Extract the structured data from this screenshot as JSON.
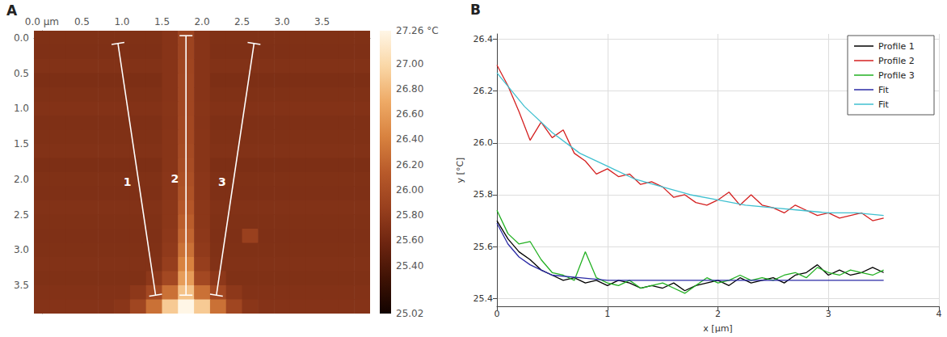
{
  "chart_data": [
    {
      "type": "heatmap",
      "panel_label": "A",
      "x": [
        0,
        0.2,
        0.4,
        0.6,
        0.8,
        1,
        1.2,
        1.4,
        1.6,
        1.8,
        2,
        2.2,
        2.4,
        2.6,
        2.8,
        3,
        3.2,
        3.4,
        3.6,
        3.8,
        4
      ],
      "y": [
        0,
        0.2,
        0.4,
        0.6,
        0.8,
        1,
        1.2,
        1.4,
        1.6,
        1.8,
        2,
        2.2,
        2.4,
        2.6,
        2.8,
        3,
        3.2,
        3.4,
        3.6,
        3.8
      ],
      "cells": [
        [
          25.7,
          25.7,
          25.7,
          25.7,
          25.7,
          25.7,
          25.7,
          25.7,
          25.74,
          25.9,
          25.74,
          25.7,
          25.7,
          25.7,
          25.7,
          25.7,
          25.7,
          25.7,
          25.7,
          25.7,
          25.7
        ],
        [
          25.69,
          25.69,
          25.69,
          25.69,
          25.69,
          25.69,
          25.69,
          25.69,
          25.74,
          25.9,
          25.74,
          25.69,
          25.69,
          25.69,
          25.69,
          25.69,
          25.69,
          25.69,
          25.69,
          25.69,
          25.69
        ],
        [
          25.71,
          25.71,
          25.71,
          25.71,
          25.71,
          25.71,
          25.71,
          25.71,
          25.74,
          25.91,
          25.74,
          25.71,
          25.71,
          25.71,
          25.71,
          25.71,
          25.71,
          25.71,
          25.71,
          25.71,
          25.71
        ],
        [
          25.68,
          25.68,
          25.68,
          25.68,
          25.68,
          25.68,
          25.68,
          25.68,
          25.74,
          25.92,
          25.74,
          25.68,
          25.68,
          25.68,
          25.68,
          25.68,
          25.68,
          25.68,
          25.68,
          25.68,
          25.68
        ],
        [
          25.7,
          25.7,
          25.7,
          25.7,
          25.7,
          25.7,
          25.7,
          25.7,
          25.74,
          25.92,
          25.74,
          25.7,
          25.7,
          25.7,
          25.7,
          25.7,
          25.7,
          25.7,
          25.7,
          25.7,
          25.7
        ],
        [
          25.72,
          25.72,
          25.72,
          25.72,
          25.72,
          25.72,
          25.72,
          25.72,
          25.75,
          25.93,
          25.75,
          25.72,
          25.72,
          25.72,
          25.72,
          25.72,
          25.72,
          25.72,
          25.72,
          25.72,
          25.72
        ],
        [
          25.69,
          25.69,
          25.69,
          25.69,
          25.69,
          25.69,
          25.69,
          25.69,
          25.74,
          25.94,
          25.74,
          25.69,
          25.69,
          25.69,
          25.69,
          25.69,
          25.69,
          25.69,
          25.69,
          25.69,
          25.69
        ],
        [
          25.7,
          25.7,
          25.7,
          25.7,
          25.7,
          25.7,
          25.7,
          25.7,
          25.75,
          25.95,
          25.75,
          25.7,
          25.7,
          25.7,
          25.7,
          25.7,
          25.7,
          25.7,
          25.7,
          25.7,
          25.7
        ],
        [
          25.71,
          25.71,
          25.71,
          25.71,
          25.71,
          25.71,
          25.71,
          25.71,
          25.75,
          25.97,
          25.75,
          25.71,
          25.71,
          25.71,
          25.71,
          25.71,
          25.71,
          25.71,
          25.71,
          25.71,
          25.71
        ],
        [
          25.68,
          25.68,
          25.68,
          25.68,
          25.68,
          25.68,
          25.68,
          25.68,
          25.75,
          25.99,
          25.75,
          25.68,
          25.68,
          25.68,
          25.68,
          25.68,
          25.68,
          25.68,
          25.68,
          25.68,
          25.68
        ],
        [
          25.7,
          25.7,
          25.7,
          25.7,
          25.7,
          25.7,
          25.7,
          25.7,
          25.76,
          26.02,
          25.76,
          25.7,
          25.7,
          25.7,
          25.7,
          25.7,
          25.7,
          25.7,
          25.7,
          25.7,
          25.7
        ],
        [
          25.69,
          25.69,
          25.69,
          25.69,
          25.69,
          25.69,
          25.69,
          25.69,
          25.76,
          26.05,
          25.76,
          25.69,
          25.69,
          25.69,
          25.69,
          25.69,
          25.69,
          25.69,
          25.69,
          25.69,
          25.69
        ],
        [
          25.71,
          25.71,
          25.71,
          25.71,
          25.71,
          25.71,
          25.71,
          25.71,
          25.77,
          26.1,
          25.77,
          25.71,
          25.71,
          25.71,
          25.71,
          25.71,
          25.71,
          25.71,
          25.71,
          25.71,
          25.71
        ],
        [
          25.7,
          25.7,
          25.7,
          25.7,
          25.7,
          25.7,
          25.7,
          25.7,
          25.77,
          26.16,
          25.77,
          25.7,
          25.7,
          25.7,
          25.7,
          25.7,
          25.7,
          25.7,
          25.7,
          25.7,
          25.7
        ],
        [
          25.69,
          25.69,
          25.69,
          25.69,
          25.69,
          25.69,
          25.69,
          25.69,
          25.78,
          26.22,
          25.78,
          25.69,
          25.69,
          25.86,
          25.69,
          25.69,
          25.69,
          25.69,
          25.69,
          25.69,
          25.69
        ],
        [
          25.7,
          25.7,
          25.7,
          25.7,
          25.7,
          25.7,
          25.7,
          25.7,
          25.8,
          26.3,
          25.8,
          25.7,
          25.7,
          25.7,
          25.7,
          25.7,
          25.7,
          25.7,
          25.7,
          25.7,
          25.7
        ],
        [
          25.71,
          25.71,
          25.71,
          25.71,
          25.71,
          25.71,
          25.71,
          25.71,
          25.84,
          26.42,
          25.84,
          25.71,
          25.71,
          25.71,
          25.71,
          25.71,
          25.71,
          25.71,
          25.71,
          25.71,
          25.71
        ],
        [
          25.7,
          25.7,
          25.7,
          25.7,
          25.7,
          25.7,
          25.7,
          25.78,
          25.95,
          26.6,
          25.95,
          25.78,
          25.7,
          25.7,
          25.7,
          25.7,
          25.7,
          25.7,
          25.7,
          25.7,
          25.7
        ],
        [
          25.72,
          25.72,
          25.72,
          25.72,
          25.72,
          25.72,
          25.78,
          25.95,
          26.3,
          26.85,
          26.3,
          25.95,
          25.78,
          25.72,
          25.72,
          25.72,
          25.72,
          25.72,
          25.72,
          25.72,
          25.72
        ],
        [
          25.73,
          25.73,
          25.73,
          25.73,
          25.73,
          25.76,
          25.92,
          26.3,
          26.9,
          27.26,
          26.9,
          26.3,
          25.92,
          25.76,
          25.73,
          25.73,
          25.73,
          25.73,
          25.73,
          25.73,
          25.73
        ]
      ],
      "xlim": [
        -0.1,
        4.1
      ],
      "xticks": [
        {
          "value": 0,
          "label": "0.0 µm"
        },
        0.5,
        {
          "value": 1,
          "label": "1.0"
        },
        1.5,
        {
          "value": 2,
          "label": "2.0"
        },
        2.5,
        {
          "value": 3,
          "label": "3.0"
        },
        3.5
      ],
      "ylim": [
        -0.1,
        3.9
      ],
      "yticks": [
        {
          "value": 0,
          "label": "0.0"
        },
        0.5,
        {
          "value": 1,
          "label": "1.0"
        },
        1.5,
        {
          "value": 2,
          "label": "2.0"
        },
        2.5,
        {
          "value": 3,
          "label": "3.0"
        },
        3.5
      ],
      "colorbar": {
        "range": [
          25.02,
          27.26
        ],
        "ticks": [
          25.02,
          {
            "value": 25.4,
            "label": "25.40"
          },
          {
            "value": 25.6,
            "label": "25.60"
          },
          {
            "value": 25.8,
            "label": "25.80"
          },
          {
            "value": 26,
            "label": "26.00"
          },
          {
            "value": 26.2,
            "label": "26.20"
          },
          {
            "value": 26.4,
            "label": "26.40"
          },
          {
            "value": 26.6,
            "label": "26.60"
          },
          {
            "value": 26.8,
            "label": "26.80"
          },
          {
            "value": 27,
            "label": "27.00"
          },
          {
            "value": 27.26,
            "label": "27.26 °C"
          }
        ]
      },
      "profiles": [
        {
          "label": "1",
          "start": [
            0.95,
            0.08
          ],
          "end": [
            1.42,
            3.64
          ]
        },
        {
          "label": "2",
          "start": [
            1.8,
            -0.03
          ],
          "end": [
            1.8,
            3.64
          ]
        },
        {
          "label": "3",
          "start": [
            2.65,
            0.08
          ],
          "end": [
            2.18,
            3.64
          ]
        }
      ]
    },
    {
      "type": "line",
      "panel_label": "B",
      "x_label": "x [µm]",
      "y_label": "y [°C]",
      "xlim": [
        0,
        4
      ],
      "xticks": [
        0,
        1,
        2,
        3,
        4
      ],
      "ylim": [
        25.37,
        26.42
      ],
      "yticks": [
        25.4,
        25.6,
        25.8,
        {
          "value": 26,
          "label": "26.0"
        },
        26.2,
        26.4
      ],
      "grid": true,
      "legend": "upper right",
      "series": [
        {
          "name": "Profile 1",
          "color": "#000000",
          "x": [
            0,
            0.1,
            0.2,
            0.3,
            0.4,
            0.5,
            0.6,
            0.7,
            0.8,
            0.9,
            1,
            1.1,
            1.2,
            1.3,
            1.4,
            1.5,
            1.6,
            1.7,
            1.8,
            1.9,
            2,
            2.1,
            2.2,
            2.3,
            2.4,
            2.5,
            2.6,
            2.7,
            2.8,
            2.9,
            3,
            3.1,
            3.2,
            3.3,
            3.4,
            3.5
          ],
          "values": [
            25.7,
            25.63,
            25.58,
            25.55,
            25.51,
            25.49,
            25.47,
            25.48,
            25.46,
            25.47,
            25.45,
            25.47,
            25.46,
            25.44,
            25.45,
            25.44,
            25.46,
            25.43,
            25.45,
            25.46,
            25.47,
            25.45,
            25.48,
            25.46,
            25.47,
            25.48,
            25.46,
            25.49,
            25.5,
            25.53,
            25.49,
            25.51,
            25.49,
            25.5,
            25.52,
            25.5
          ]
        },
        {
          "name": "Profile 2",
          "color": "#d42020",
          "x": [
            0,
            0.1,
            0.2,
            0.3,
            0.4,
            0.5,
            0.6,
            0.7,
            0.8,
            0.9,
            1,
            1.1,
            1.2,
            1.3,
            1.4,
            1.5,
            1.6,
            1.7,
            1.8,
            1.9,
            2,
            2.1,
            2.2,
            2.3,
            2.4,
            2.5,
            2.6,
            2.7,
            2.8,
            2.9,
            3,
            3.1,
            3.2,
            3.3,
            3.4,
            3.5
          ],
          "values": [
            26.3,
            26.22,
            26.12,
            26.01,
            26.08,
            26.02,
            26.05,
            25.96,
            25.93,
            25.88,
            25.9,
            25.87,
            25.88,
            25.84,
            25.85,
            25.83,
            25.79,
            25.8,
            25.77,
            25.76,
            25.78,
            25.81,
            25.76,
            25.8,
            25.76,
            25.75,
            25.73,
            25.76,
            25.74,
            25.72,
            25.73,
            25.71,
            25.72,
            25.73,
            25.7,
            25.71
          ]
        },
        {
          "name": "Profile 3",
          "color": "#22b022",
          "x": [
            0,
            0.1,
            0.2,
            0.3,
            0.4,
            0.5,
            0.6,
            0.7,
            0.8,
            0.9,
            1,
            1.1,
            1.2,
            1.3,
            1.4,
            1.5,
            1.6,
            1.7,
            1.8,
            1.9,
            2,
            2.1,
            2.2,
            2.3,
            2.4,
            2.5,
            2.6,
            2.7,
            2.8,
            2.9,
            3,
            3.1,
            3.2,
            3.3,
            3.4,
            3.5
          ],
          "values": [
            25.74,
            25.65,
            25.61,
            25.62,
            25.55,
            25.5,
            25.49,
            25.47,
            25.58,
            25.48,
            25.46,
            25.45,
            25.47,
            25.44,
            25.45,
            25.46,
            25.44,
            25.42,
            25.45,
            25.48,
            25.46,
            25.47,
            25.49,
            25.47,
            25.48,
            25.47,
            25.49,
            25.5,
            25.48,
            25.52,
            25.5,
            25.49,
            25.51,
            25.5,
            25.49,
            25.51
          ]
        },
        {
          "name": "Fit",
          "color": "#2a2aa6",
          "x": [
            0,
            0.1,
            0.2,
            0.3,
            0.4,
            0.5,
            0.75,
            1,
            1.5,
            2,
            2.5,
            3,
            3.5
          ],
          "values": [
            25.69,
            25.61,
            25.56,
            25.53,
            25.51,
            25.49,
            25.48,
            25.47,
            25.47,
            25.47,
            25.47,
            25.47,
            25.47
          ]
        },
        {
          "name": "Fit",
          "color": "#40c0d0",
          "x": [
            0,
            0.25,
            0.5,
            0.75,
            1,
            1.25,
            1.5,
            1.75,
            2,
            2.25,
            2.5,
            2.75,
            3,
            3.25,
            3.5
          ],
          "values": [
            26.27,
            26.14,
            26.04,
            25.96,
            25.91,
            25.86,
            25.83,
            25.8,
            25.78,
            25.76,
            25.75,
            25.74,
            25.73,
            25.73,
            25.72
          ]
        }
      ]
    }
  ]
}
